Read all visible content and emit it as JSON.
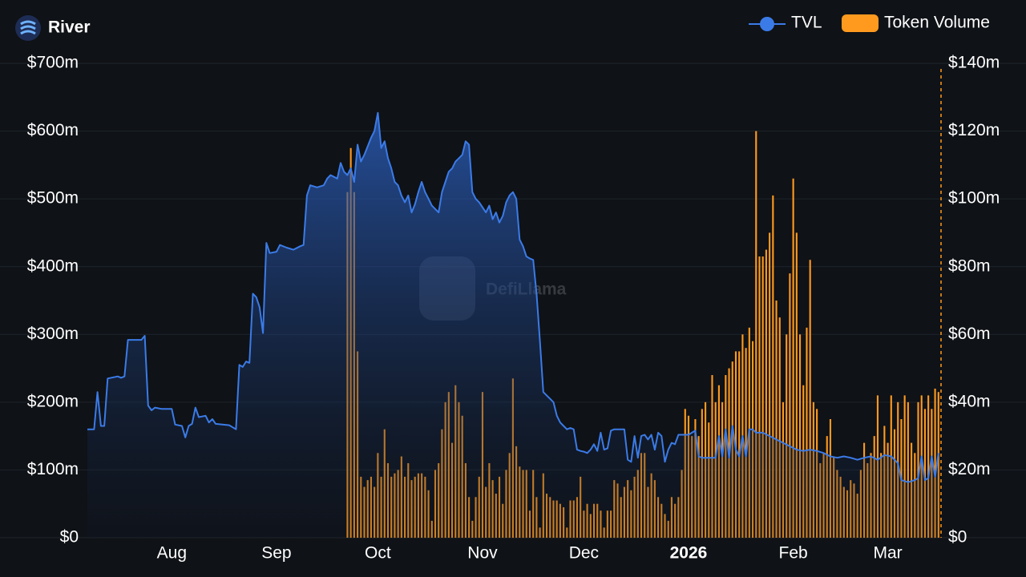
{
  "chart_data": {
    "type": "combo",
    "title": "River",
    "watermark": "DefiLlama",
    "grid": true,
    "legend": "top-right",
    "xlim": [
      0,
      253
    ],
    "xticks": [
      {
        "value": 25,
        "label": "Aug"
      },
      {
        "value": 56,
        "label": "Sep"
      },
      {
        "value": 86,
        "label": "Oct"
      },
      {
        "value": 117,
        "label": "Nov"
      },
      {
        "value": 147,
        "label": "Dec"
      },
      {
        "value": 178,
        "label": "2026"
      },
      {
        "value": 209,
        "label": "Feb"
      },
      {
        "value": 237,
        "label": "Mar"
      }
    ],
    "ylim": [
      0,
      700
    ],
    "yticks": [
      {
        "value": 0,
        "label": "$0"
      },
      {
        "value": 100,
        "label": "$100m"
      },
      {
        "value": 200,
        "label": "$200m"
      },
      {
        "value": 300,
        "label": "$300m"
      },
      {
        "value": 400,
        "label": "$400m"
      },
      {
        "value": 500,
        "label": "$500m"
      },
      {
        "value": 600,
        "label": "$600m"
      },
      {
        "value": 700,
        "label": "$700m"
      }
    ],
    "y2lim": [
      0,
      140
    ],
    "y2ticks": [
      {
        "value": 0,
        "label": "$0"
      },
      {
        "value": 20,
        "label": "$20m"
      },
      {
        "value": 40,
        "label": "$40m"
      },
      {
        "value": 60,
        "label": "$60m"
      },
      {
        "value": 80,
        "label": "$80m"
      },
      {
        "value": 100,
        "label": "$100m"
      },
      {
        "value": 120,
        "label": "$120m"
      },
      {
        "value": 140,
        "label": "$140m"
      }
    ],
    "series": [
      {
        "name": "TVL",
        "type": "area",
        "axis": "y",
        "color": "#3b7be8",
        "x": [
          0,
          2,
          3,
          4,
          5,
          6,
          9,
          10,
          11,
          12,
          16,
          17,
          18,
          19,
          20,
          22,
          25,
          26,
          28,
          29,
          30,
          31,
          32,
          33,
          35,
          36,
          37,
          38,
          42,
          44,
          45,
          46,
          47,
          48,
          49,
          50,
          51,
          52,
          53,
          54,
          56,
          57,
          59,
          61,
          63,
          64,
          65,
          66,
          68,
          70,
          71,
          72,
          74,
          75,
          76,
          77,
          78,
          79,
          80,
          81,
          82,
          84,
          85,
          86,
          87,
          88,
          89,
          90,
          91,
          92,
          93,
          94,
          95,
          96,
          97,
          98,
          99,
          100,
          101,
          102,
          103,
          104,
          105,
          106,
          107,
          108,
          109,
          110,
          111,
          112,
          113,
          114,
          115,
          116,
          118,
          119,
          120,
          121,
          122,
          123,
          124,
          125,
          126,
          127,
          128,
          129,
          130,
          131,
          132,
          133,
          134,
          135,
          136,
          137,
          138,
          139,
          140,
          141,
          142,
          143,
          144,
          145,
          146,
          147,
          148,
          149,
          150,
          151,
          152,
          153,
          154,
          155,
          156,
          159,
          160,
          161,
          162,
          163,
          164,
          165,
          166,
          167,
          168,
          169,
          170,
          171,
          172,
          173,
          174,
          175,
          178,
          179,
          180,
          181,
          182,
          186,
          187,
          188,
          189,
          190,
          191,
          192,
          193,
          194,
          195,
          196,
          197,
          198,
          200,
          202,
          204,
          206,
          208,
          210,
          212,
          214,
          216,
          218,
          220,
          222,
          224,
          226,
          228,
          230,
          232,
          234,
          236,
          238,
          240,
          241,
          243,
          245,
          246,
          247,
          248,
          249,
          250,
          251,
          252
        ],
        "values": [
          160,
          160,
          215,
          165,
          165,
          235,
          238,
          236,
          238,
          292,
          292,
          298,
          195,
          188,
          192,
          190,
          190,
          167,
          165,
          148,
          165,
          168,
          192,
          178,
          180,
          170,
          175,
          168,
          166,
          160,
          255,
          252,
          260,
          258,
          360,
          355,
          340,
          302,
          435,
          420,
          422,
          432,
          428,
          425,
          430,
          432,
          505,
          520,
          517,
          520,
          530,
          535,
          530,
          553,
          540,
          535,
          545,
          525,
          580,
          555,
          565,
          590,
          600,
          627,
          575,
          585,
          560,
          545,
          525,
          520,
          505,
          495,
          505,
          480,
          492,
          510,
          525,
          510,
          500,
          490,
          485,
          480,
          510,
          525,
          540,
          545,
          555,
          560,
          565,
          585,
          580,
          510,
          500,
          495,
          480,
          490,
          470,
          480,
          465,
          475,
          495,
          505,
          510,
          500,
          440,
          430,
          415,
          412,
          410,
          360,
          290,
          215,
          210,
          205,
          200,
          180,
          170,
          165,
          160,
          162,
          160,
          130,
          128,
          127,
          125,
          130,
          138,
          128,
          155,
          130,
          132,
          158,
          160,
          160,
          115,
          112,
          150,
          118,
          150,
          152,
          145,
          152,
          130,
          155,
          150,
          112,
          130,
          140,
          138,
          152,
          152,
          155,
          158,
          120,
          118,
          118,
          150,
          120,
          160,
          118,
          165,
          130,
          120,
          150,
          120,
          160,
          160,
          155,
          155,
          150,
          145,
          140,
          135,
          130,
          128,
          130,
          128,
          125,
          120,
          118,
          120,
          118,
          115,
          118,
          120,
          115,
          122,
          120,
          110,
          85,
          82,
          85,
          88,
          120,
          85,
          88,
          120,
          90,
          125
        ]
      },
      {
        "name": "Token Volume",
        "type": "bar",
        "axis": "y2",
        "color": "#ff9a1f",
        "x": [
          77,
          78,
          79,
          80,
          81,
          82,
          83,
          84,
          85,
          86,
          87,
          88,
          89,
          90,
          91,
          92,
          93,
          94,
          95,
          96,
          97,
          98,
          99,
          100,
          101,
          102,
          103,
          104,
          105,
          106,
          107,
          108,
          109,
          110,
          111,
          112,
          113,
          114,
          115,
          116,
          117,
          118,
          119,
          120,
          121,
          122,
          123,
          124,
          125,
          126,
          127,
          128,
          129,
          130,
          131,
          132,
          133,
          134,
          135,
          136,
          137,
          138,
          139,
          140,
          141,
          142,
          143,
          144,
          145,
          146,
          147,
          148,
          149,
          150,
          151,
          152,
          153,
          154,
          155,
          156,
          157,
          158,
          159,
          160,
          161,
          162,
          163,
          164,
          165,
          166,
          167,
          168,
          169,
          170,
          171,
          172,
          173,
          174,
          175,
          176,
          177,
          178,
          179,
          180,
          181,
          182,
          183,
          184,
          185,
          186,
          187,
          188,
          189,
          190,
          191,
          192,
          193,
          194,
          195,
          196,
          197,
          198,
          199,
          200,
          201,
          202,
          203,
          204,
          205,
          206,
          207,
          208,
          209,
          210,
          211,
          212,
          213,
          214,
          215,
          216,
          217,
          218,
          219,
          220,
          221,
          222,
          223,
          224,
          225,
          226,
          227,
          228,
          229,
          230,
          231,
          232,
          233,
          234,
          235,
          236,
          237,
          238,
          239,
          240,
          241,
          242,
          243,
          244,
          245,
          246,
          247,
          248,
          249,
          250,
          251,
          252
        ],
        "values": [
          102,
          115,
          102,
          55,
          18,
          15,
          17,
          18,
          15,
          25,
          18,
          32,
          22,
          18,
          19,
          20,
          24,
          18,
          22,
          17,
          18,
          19,
          19,
          18,
          14,
          5,
          20,
          22,
          32,
          40,
          43,
          28,
          45,
          40,
          36,
          22,
          12,
          5,
          12,
          18,
          43,
          15,
          22,
          17,
          13,
          18,
          10,
          20,
          25,
          47,
          27,
          21,
          20,
          20,
          8,
          20,
          12,
          3,
          19,
          13,
          12,
          11,
          11,
          10,
          9,
          3,
          11,
          11,
          12,
          18,
          8,
          10,
          7,
          10,
          10,
          8,
          3,
          8,
          8,
          17,
          16,
          12,
          15,
          17,
          14,
          18,
          20,
          25,
          25,
          15,
          19,
          17,
          12,
          10,
          7,
          5,
          12,
          10,
          12,
          20,
          38,
          36,
          30,
          35,
          30,
          38,
          40,
          34,
          48,
          40,
          45,
          40,
          48,
          50,
          52,
          55,
          55,
          60,
          56,
          62,
          58,
          120,
          83,
          83,
          85,
          90,
          101,
          70,
          65,
          40,
          60,
          78,
          106,
          90,
          60,
          45,
          62,
          82,
          40,
          38,
          22,
          25,
          30,
          35,
          24,
          20,
          18,
          15,
          14,
          17,
          16,
          13,
          20,
          28,
          22,
          25,
          30,
          42,
          25,
          33,
          28,
          42,
          32,
          40,
          35,
          42,
          40,
          28,
          25,
          40,
          42,
          38,
          42,
          38,
          44,
          43
        ]
      }
    ]
  }
}
